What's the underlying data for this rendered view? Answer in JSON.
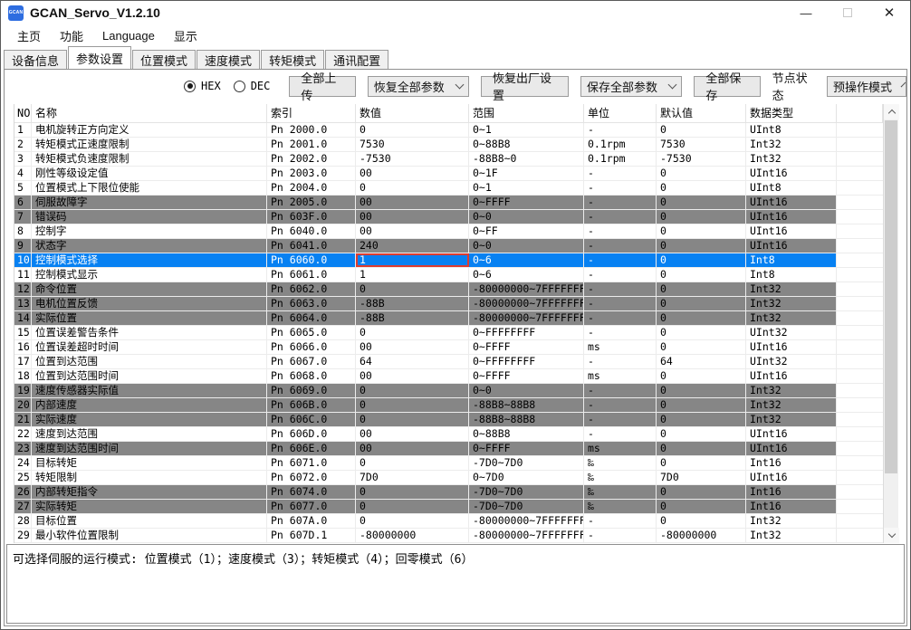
{
  "window": {
    "title": "GCAN_Servo_V1.2.10",
    "icon_text": "GCAN",
    "minimize_glyph": "—",
    "close_glyph": "✕"
  },
  "menu": {
    "items": [
      "主页",
      "功能",
      "Language",
      "显示"
    ]
  },
  "tabs": {
    "items": [
      "设备信息",
      "参数设置",
      "位置模式",
      "速度模式",
      "转矩模式",
      "通讯配置"
    ],
    "active": "参数设置"
  },
  "toolbar": {
    "radio_hex": "HEX",
    "radio_dec": "DEC",
    "radio_selected": "HEX",
    "upload_all": "全部上传",
    "restore_all_params": "恢复全部参数",
    "factory_reset": "恢复出厂设置",
    "save_all_params": "保存全部参数",
    "save_all": "全部保存",
    "node_status_label": "节点状态",
    "node_status_value": "预操作模式"
  },
  "colors": {
    "selection_blue": "#0781f2",
    "row_gray": "#868686",
    "highlight_red": "#dd3c30",
    "icon_blue": "#2e6de0"
  },
  "table": {
    "headers": [
      "NO",
      "名称",
      "索引",
      "数值",
      "范围",
      "单位",
      "默认值",
      "数据类型"
    ],
    "rows": [
      {
        "no": "1",
        "name": "电机旋转正方向定义",
        "index": "Pn 2000.0",
        "value": "0",
        "range": "0~1",
        "unit": "-",
        "default": "0",
        "type": "UInt8",
        "style": "white"
      },
      {
        "no": "2",
        "name": "转矩模式正速度限制",
        "index": "Pn 2001.0",
        "value": "7530",
        "range": "0~88B8",
        "unit": "0.1rpm",
        "default": "7530",
        "type": "Int32",
        "style": "white"
      },
      {
        "no": "3",
        "name": "转矩模式负速度限制",
        "index": "Pn 2002.0",
        "value": "-7530",
        "range": "-88B8~0",
        "unit": "0.1rpm",
        "default": "-7530",
        "type": "Int32",
        "style": "white"
      },
      {
        "no": "4",
        "name": "刚性等级设定值",
        "index": "Pn 2003.0",
        "value": "00",
        "range": "0~1F",
        "unit": "-",
        "default": "0",
        "type": "UInt16",
        "style": "white"
      },
      {
        "no": "5",
        "name": "位置模式上下限位使能",
        "index": "Pn 2004.0",
        "value": "0",
        "range": "0~1",
        "unit": "-",
        "default": "0",
        "type": "UInt8",
        "style": "white"
      },
      {
        "no": "6",
        "name": "伺服故障字",
        "index": "Pn 2005.0",
        "value": "00",
        "range": "0~FFFF",
        "unit": "-",
        "default": "0",
        "type": "UInt16",
        "style": "gray"
      },
      {
        "no": "7",
        "name": "错误码",
        "index": "Pn 603F.0",
        "value": "00",
        "range": "0~0",
        "unit": "-",
        "default": "0",
        "type": "UInt16",
        "style": "gray"
      },
      {
        "no": "8",
        "name": "控制字",
        "index": "Pn 6040.0",
        "value": "00",
        "range": "0~FF",
        "unit": "-",
        "default": "0",
        "type": "UInt16",
        "style": "white"
      },
      {
        "no": "9",
        "name": "状态字",
        "index": "Pn 6041.0",
        "value": "240",
        "range": "0~0",
        "unit": "-",
        "default": "0",
        "type": "UInt16",
        "style": "gray"
      },
      {
        "no": "10",
        "name": "控制模式选择",
        "index": "Pn 6060.0",
        "value": "1",
        "range": "0~6",
        "unit": "-",
        "default": "0",
        "type": "Int8",
        "style": "selected",
        "value_boxed": true
      },
      {
        "no": "11",
        "name": "控制模式显示",
        "index": "Pn 6061.0",
        "value": "1",
        "range": "0~6",
        "unit": "-",
        "default": "0",
        "type": "Int8",
        "style": "white"
      },
      {
        "no": "12",
        "name": "命令位置",
        "index": "Pn 6062.0",
        "value": "0",
        "range": "-80000000~7FFFFFFF",
        "unit": "-",
        "default": "0",
        "type": "Int32",
        "style": "gray"
      },
      {
        "no": "13",
        "name": "电机位置反馈",
        "index": "Pn 6063.0",
        "value": "-88B",
        "range": "-80000000~7FFFFFFF",
        "unit": "-",
        "default": "0",
        "type": "Int32",
        "style": "gray"
      },
      {
        "no": "14",
        "name": "实际位置",
        "index": "Pn 6064.0",
        "value": "-88B",
        "range": "-80000000~7FFFFFFF",
        "unit": "-",
        "default": "0",
        "type": "Int32",
        "style": "gray"
      },
      {
        "no": "15",
        "name": "位置误差警告条件",
        "index": "Pn 6065.0",
        "value": "0",
        "range": "0~FFFFFFFF",
        "unit": "-",
        "default": "0",
        "type": "UInt32",
        "style": "white"
      },
      {
        "no": "16",
        "name": "位置误差超时时间",
        "index": "Pn 6066.0",
        "value": "00",
        "range": "0~FFFF",
        "unit": "ms",
        "default": "0",
        "type": "UInt16",
        "style": "white"
      },
      {
        "no": "17",
        "name": "位置到达范围",
        "index": "Pn 6067.0",
        "value": "64",
        "range": "0~FFFFFFFF",
        "unit": "-",
        "default": "64",
        "type": "UInt32",
        "style": "white"
      },
      {
        "no": "18",
        "name": "位置到达范围时间",
        "index": "Pn 6068.0",
        "value": "00",
        "range": "0~FFFF",
        "unit": "ms",
        "default": "0",
        "type": "UInt16",
        "style": "white"
      },
      {
        "no": "19",
        "name": "速度传感器实际值",
        "index": "Pn 6069.0",
        "value": "0",
        "range": "0~0",
        "unit": "-",
        "default": "0",
        "type": "Int32",
        "style": "gray"
      },
      {
        "no": "20",
        "name": "内部速度",
        "index": "Pn 606B.0",
        "value": "0",
        "range": "-88B8~88B8",
        "unit": "-",
        "default": "0",
        "type": "Int32",
        "style": "gray"
      },
      {
        "no": "21",
        "name": "实际速度",
        "index": "Pn 606C.0",
        "value": "0",
        "range": "-88B8~88B8",
        "unit": "-",
        "default": "0",
        "type": "Int32",
        "style": "gray"
      },
      {
        "no": "22",
        "name": "速度到达范围",
        "index": "Pn 606D.0",
        "value": "00",
        "range": "0~88B8",
        "unit": "-",
        "default": "0",
        "type": "UInt16",
        "style": "white"
      },
      {
        "no": "23",
        "name": "速度到达范围时间",
        "index": "Pn 606E.0",
        "value": "00",
        "range": "0~FFFF",
        "unit": "ms",
        "default": "0",
        "type": "UInt16",
        "style": "gray"
      },
      {
        "no": "24",
        "name": "目标转矩",
        "index": "Pn 6071.0",
        "value": "0",
        "range": "-7D0~7D0",
        "unit": "‰",
        "default": "0",
        "type": "Int16",
        "style": "white"
      },
      {
        "no": "25",
        "name": "转矩限制",
        "index": "Pn 6072.0",
        "value": "7D0",
        "range": "0~7D0",
        "unit": "‰",
        "default": "7D0",
        "type": "UInt16",
        "style": "white"
      },
      {
        "no": "26",
        "name": "内部转矩指令",
        "index": "Pn 6074.0",
        "value": "0",
        "range": "-7D0~7D0",
        "unit": "‰",
        "default": "0",
        "type": "Int16",
        "style": "gray"
      },
      {
        "no": "27",
        "name": "实际转矩",
        "index": "Pn 6077.0",
        "value": "0",
        "range": "-7D0~7D0",
        "unit": "‰",
        "default": "0",
        "type": "Int16",
        "style": "gray"
      },
      {
        "no": "28",
        "name": "目标位置",
        "index": "Pn 607A.0",
        "value": "0",
        "range": "-80000000~7FFFFFFF",
        "unit": "-",
        "default": "0",
        "type": "Int32",
        "style": "white"
      },
      {
        "no": "29",
        "name": "最小软件位置限制",
        "index": "Pn 607D.1",
        "value": "-80000000",
        "range": "-80000000~7FFFFFFF",
        "unit": "-",
        "default": "-80000000",
        "type": "Int32",
        "style": "white"
      }
    ]
  },
  "status": {
    "text": "可选择伺服的运行模式: 位置模式（1）；速度模式（3）；转矩模式（4）；回零模式（6）"
  }
}
